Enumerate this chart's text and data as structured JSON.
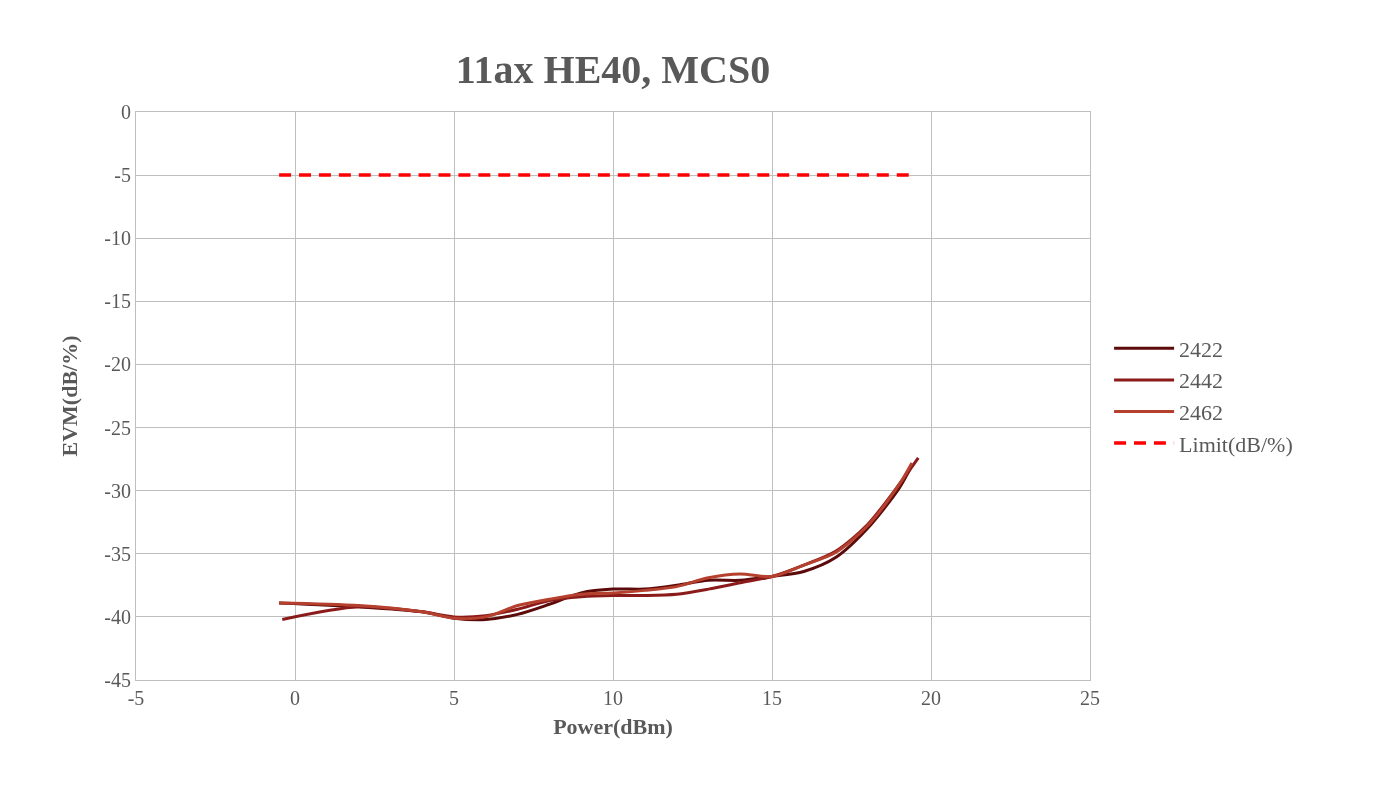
{
  "chart_data": {
    "type": "line",
    "title": "11ax HE40, MCS0",
    "xlabel": "Power(dBm)",
    "ylabel": "EVM(dB/%)",
    "xlim": [
      -5,
      25
    ],
    "xticks": [
      -5,
      0,
      5,
      10,
      15,
      20,
      25
    ],
    "ylim": [
      -45,
      0
    ],
    "yticks": [
      -45,
      -40,
      -35,
      -30,
      -25,
      -20,
      -15,
      -10,
      -5,
      0
    ],
    "grid": true,
    "legend": "right",
    "marker": "none",
    "series": [
      {
        "name": "2422",
        "color": "#5c0a0a",
        "x": [
          -0.5,
          2,
          4,
          5,
          6,
          7,
          8,
          9,
          10,
          11,
          12,
          13,
          14,
          15,
          16,
          17,
          18,
          19,
          19.4
        ],
        "values": [
          -38.9,
          -39.2,
          -39.6,
          -40.1,
          -40.2,
          -39.8,
          -39.0,
          -38.1,
          -37.8,
          -37.8,
          -37.5,
          -37.1,
          -37.1,
          -36.8,
          -36.4,
          -35.3,
          -33.0,
          -29.8,
          -28.0
        ]
      },
      {
        "name": "2442",
        "color": "#8b1a1a",
        "x": [
          -0.4,
          2,
          4,
          5,
          6,
          7,
          8,
          9,
          10,
          11,
          12,
          13,
          14,
          15,
          16,
          17,
          18,
          19,
          19.6
        ],
        "values": [
          -40.2,
          -39.2,
          -39.6,
          -40.0,
          -39.9,
          -39.4,
          -38.7,
          -38.4,
          -38.3,
          -38.3,
          -38.2,
          -37.8,
          -37.3,
          -36.8,
          -35.9,
          -34.8,
          -32.7,
          -29.5,
          -27.4
        ]
      },
      {
        "name": "2462",
        "color": "#b5402e",
        "x": [
          -0.5,
          2,
          4,
          5,
          6,
          7,
          8,
          9,
          10,
          11,
          12,
          13,
          14,
          15,
          16,
          17,
          18,
          19,
          19.4
        ],
        "values": [
          -38.9,
          -39.1,
          -39.6,
          -40.1,
          -40.0,
          -39.1,
          -38.6,
          -38.2,
          -38.1,
          -37.9,
          -37.6,
          -36.9,
          -36.6,
          -36.8,
          -35.9,
          -34.9,
          -32.8,
          -29.5,
          -27.8
        ]
      },
      {
        "name": "Limit(dB/%)",
        "color": "#ff0000",
        "line_style": "dashed",
        "x": [
          -0.5,
          19.3
        ],
        "values": [
          -5,
          -5
        ]
      }
    ]
  }
}
